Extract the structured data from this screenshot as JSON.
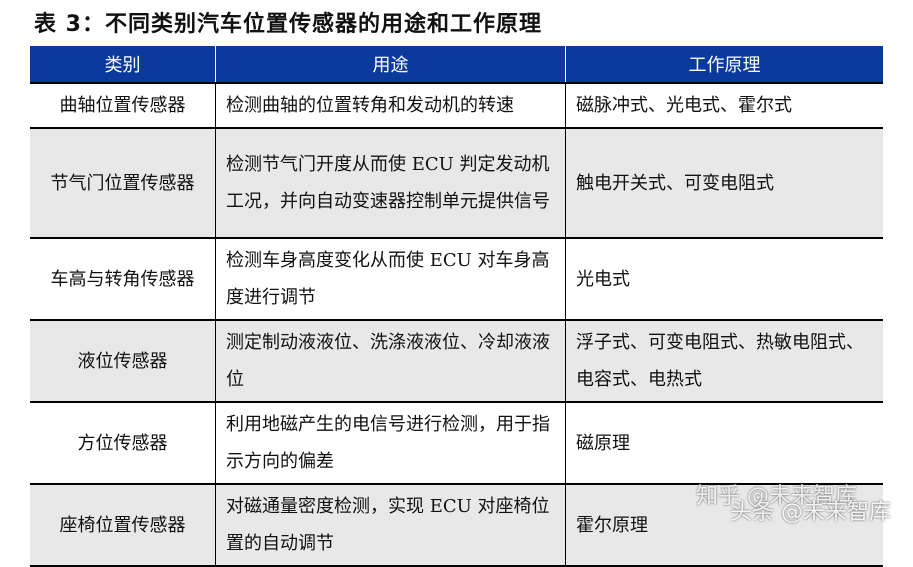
{
  "title": "表 3：不同类别汽车位置传感器的用途和工作原理",
  "colors": {
    "header_bg": "#0a3a9c",
    "alt_row_bg": "#e8e8e8"
  },
  "headers": [
    "类别",
    "用途",
    "工作原理"
  ],
  "rows": [
    [
      "曲轴位置传感器",
      "检测曲轴的位置转角和发动机的转速",
      "磁脉冲式、光电式、霍尔式"
    ],
    [
      "节气门位置传感器",
      "检测节气门开度从而使 ECU 判定发动机工况，并向自动变速器控制单元提供信号",
      "触电开关式、可变电阻式"
    ],
    [
      "车高与转角传感器",
      "检测车身高度变化从而使 ECU 对车身高度进行调节",
      "光电式"
    ],
    [
      "液位传感器",
      "测定制动液液位、洗涤液液位、冷却液液位",
      "浮子式、可变电阻式、热敏电阻式、电容式、电热式"
    ],
    [
      "方位传感器",
      "利用地磁产生的电信号进行检测，用于指示方向的偏差",
      "磁原理"
    ],
    [
      "座椅位置传感器",
      "对磁通量密度检测，实现 ECU 对座椅位置的自动调节",
      "霍尔原理"
    ]
  ],
  "watermarks": [
    "知乎 @未来智库",
    "头条 @未来智库"
  ]
}
